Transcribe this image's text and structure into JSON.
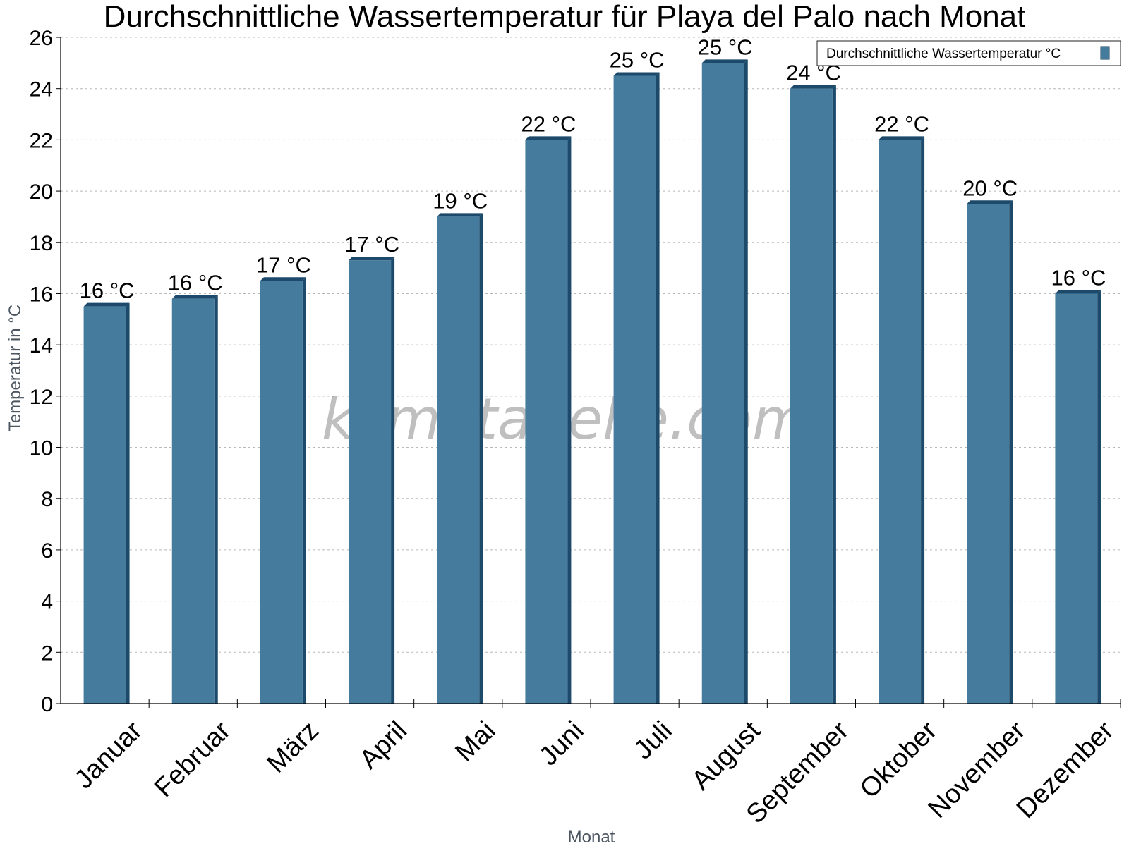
{
  "chart_data": {
    "type": "bar",
    "title": "Durchschnittliche Wassertemperatur für Playa del Palo nach Monat",
    "xlabel": "Monat",
    "ylabel": "Temperatur in °C",
    "ylim": [
      0,
      26
    ],
    "yticks": [
      0,
      2,
      4,
      6,
      8,
      10,
      12,
      14,
      16,
      18,
      20,
      22,
      24,
      26
    ],
    "grid": true,
    "legend_position": "top-right",
    "categories": [
      "Januar",
      "Februar",
      "März",
      "April",
      "Mai",
      "Juni",
      "Juli",
      "August",
      "September",
      "Oktober",
      "November",
      "Dezember"
    ],
    "series": [
      {
        "name": "Durchschnittliche Wassertemperatur °C",
        "color": "#457b9d",
        "values": [
          15.5,
          15.8,
          16.5,
          17.3,
          19.0,
          22.0,
          24.5,
          25.0,
          24.0,
          22.0,
          19.5,
          16.0
        ],
        "labels": [
          "16 °C",
          "16 °C",
          "17 °C",
          "17 °C",
          "19 °C",
          "22 °C",
          "25 °C",
          "25 °C",
          "24 °C",
          "22 °C",
          "20 °C",
          "16 °C"
        ]
      }
    ],
    "watermark": "klimatabelle.com"
  }
}
